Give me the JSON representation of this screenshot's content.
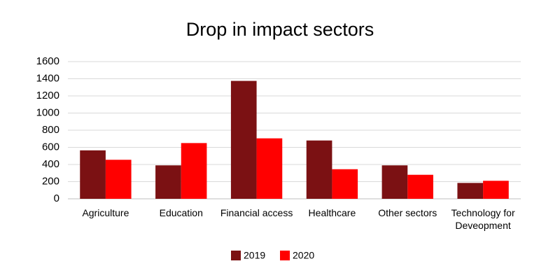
{
  "chart_data": {
    "type": "bar",
    "title": "Drop in impact sectors",
    "categories": [
      "Agriculture",
      "Education",
      "Financial access",
      "Healthcare",
      "Other sectors",
      "Technology for Deveopment"
    ],
    "series": [
      {
        "name": "2019",
        "color": "#7b1113",
        "values": [
          565,
          390,
          1375,
          680,
          390,
          185
        ]
      },
      {
        "name": "2020",
        "color": "#ff0000",
        "values": [
          455,
          650,
          705,
          345,
          280,
          210
        ]
      }
    ],
    "ylim": [
      0,
      1600
    ],
    "yticks": [
      0,
      200,
      400,
      600,
      800,
      1000,
      1200,
      1400,
      1600
    ],
    "grid": true,
    "legend": "bottom"
  }
}
